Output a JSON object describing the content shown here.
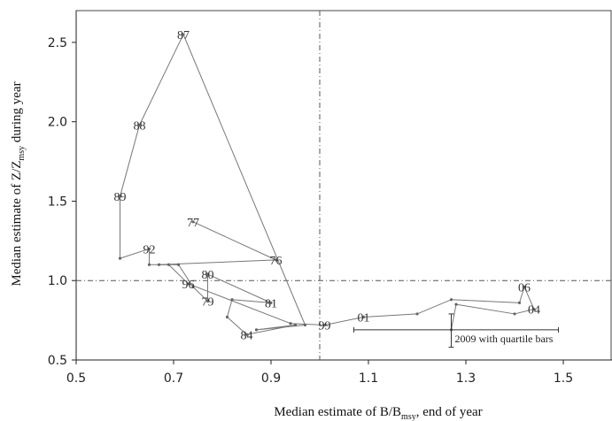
{
  "chart_data": {
    "type": "line",
    "xlabel": "Median estimate of B/B",
    "xlabel_subscript": "msy",
    "xlabel_suffix": ", end of year",
    "ylabel": "Median estimate of Z/Z",
    "ylabel_subscript": "msy",
    "ylabel_suffix": " during year",
    "xlim": [
      0.5,
      1.6
    ],
    "ylim": [
      0.5,
      2.7
    ],
    "x_ticks": [
      0.5,
      0.7,
      0.9,
      1.1,
      1.3,
      1.5
    ],
    "x_tick_labels": [
      "0.5",
      "0.7",
      "0.9",
      "1.1",
      "1.3",
      "1.5"
    ],
    "y_ticks": [
      0.5,
      1.0,
      1.5,
      2.0,
      2.5
    ],
    "y_tick_labels": [
      "0.5",
      "1.0",
      "1.5",
      "2.0",
      "2.5"
    ],
    "reference_lines": {
      "x": 1.0,
      "y": 1.0,
      "style": "dash-dot"
    },
    "grid": false,
    "series": [
      {
        "points": [
          {
            "x": 0.74,
            "y": 1.37,
            "label": "77"
          },
          {
            "x": 0.91,
            "y": 1.13,
            "label": "76"
          },
          {
            "x": 0.67,
            "y": 1.1
          },
          {
            "x": 0.71,
            "y": 1.1
          },
          {
            "x": 0.74,
            "y": 0.96
          },
          {
            "x": 0.77,
            "y": 0.87,
            "label": "79"
          },
          {
            "x": 0.77,
            "y": 1.04,
            "label": "80"
          },
          {
            "x": 0.9,
            "y": 0.86,
            "label": "81"
          },
          {
            "x": 0.82,
            "y": 0.88
          },
          {
            "x": 0.81,
            "y": 0.77
          },
          {
            "x": 0.85,
            "y": 0.66,
            "label": "84"
          },
          {
            "x": 0.95,
            "y": 0.72
          },
          {
            "x": 0.87,
            "y": 0.69
          },
          {
            "x": 0.97,
            "y": 0.72
          },
          {
            "x": 0.72,
            "y": 2.55,
            "label": "87"
          },
          {
            "x": 0.63,
            "y": 1.98,
            "label": "88"
          },
          {
            "x": 0.59,
            "y": 1.53,
            "label": "89"
          },
          {
            "x": 0.59,
            "y": 1.14
          },
          {
            "x": 0.65,
            "y": 1.2,
            "label": "92"
          },
          {
            "x": 0.65,
            "y": 1.1
          },
          {
            "x": 0.69,
            "y": 1.1
          },
          {
            "x": 0.73,
            "y": 0.98,
            "label": "96"
          },
          {
            "x": 0.94,
            "y": 0.73
          },
          {
            "x": 1.01,
            "y": 0.72,
            "label": "99"
          },
          {
            "x": 1.09,
            "y": 0.77,
            "label": "01"
          },
          {
            "x": 1.2,
            "y": 0.79
          },
          {
            "x": 1.27,
            "y": 0.88
          },
          {
            "x": 1.41,
            "y": 0.86
          },
          {
            "x": 1.42,
            "y": 0.96,
            "label": "06"
          },
          {
            "x": 1.44,
            "y": 0.82,
            "label": "04"
          },
          {
            "x": 1.4,
            "y": 0.79
          },
          {
            "x": 1.28,
            "y": 0.85
          },
          {
            "x": 1.27,
            "y": 0.69
          }
        ]
      }
    ],
    "quartile_bars": {
      "label": "2009 with quartile bars",
      "center": {
        "x": 1.27,
        "y": 0.69
      },
      "x_range": [
        1.07,
        1.49
      ],
      "y_range": [
        0.58,
        0.79
      ]
    }
  }
}
